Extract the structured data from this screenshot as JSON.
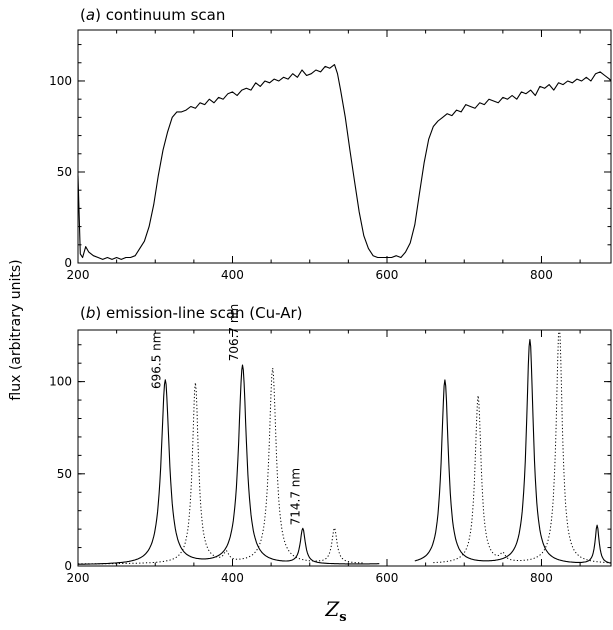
{
  "ylabel": "flux (arbitrary units)",
  "xlabel": "Z",
  "xlabel_sub": "s",
  "chart_data": [
    {
      "type": "line",
      "panel_letter": "a",
      "title": "continuum scan",
      "xlim": [
        200,
        890
      ],
      "ylim": [
        0,
        128
      ],
      "xticks": [
        200,
        400,
        600,
        800
      ],
      "yticks": [
        0,
        50,
        100
      ],
      "series": [
        {
          "style": "solid",
          "x": [
            200,
            203,
            206,
            210,
            214,
            220,
            226,
            232,
            238,
            244,
            250,
            256,
            262,
            268,
            274,
            280,
            286,
            292,
            298,
            304,
            310,
            316,
            322,
            328,
            334,
            340,
            346,
            352,
            358,
            364,
            370,
            376,
            382,
            388,
            394,
            400,
            406,
            412,
            418,
            424,
            430,
            436,
            442,
            448,
            454,
            460,
            466,
            472,
            478,
            484,
            490,
            496,
            502,
            508,
            514,
            520,
            526,
            532,
            536,
            540,
            546,
            552,
            558,
            564,
            570,
            576,
            582,
            588,
            594,
            600,
            606,
            612,
            618,
            624,
            630,
            636,
            642,
            648,
            654,
            660,
            666,
            672,
            678,
            684,
            690,
            696,
            702,
            708,
            714,
            720,
            726,
            732,
            738,
            744,
            750,
            756,
            762,
            768,
            774,
            780,
            786,
            792,
            798,
            804,
            810,
            816,
            822,
            828,
            834,
            840,
            846,
            852,
            858,
            864,
            870,
            876,
            882,
            888,
            890
          ],
          "y": [
            48,
            5,
            3,
            9,
            6,
            4,
            3,
            2,
            3,
            2,
            3,
            2,
            3,
            3,
            4,
            8,
            12,
            20,
            32,
            48,
            62,
            72,
            80,
            83,
            83,
            84,
            86,
            85,
            88,
            87,
            90,
            88,
            91,
            90,
            93,
            94,
            92,
            95,
            96,
            95,
            99,
            97,
            100,
            99,
            101,
            100,
            102,
            101,
            104,
            102,
            106,
            103,
            104,
            106,
            105,
            108,
            107,
            109,
            104,
            95,
            80,
            62,
            45,
            28,
            15,
            8,
            4,
            3,
            3,
            3,
            3,
            4,
            3,
            6,
            11,
            21,
            38,
            55,
            68,
            75,
            78,
            80,
            82,
            81,
            84,
            83,
            87,
            86,
            85,
            88,
            87,
            90,
            89,
            88,
            91,
            90,
            92,
            90,
            94,
            93,
            95,
            92,
            97,
            96,
            98,
            95,
            99,
            98,
            100,
            99,
            101,
            100,
            102,
            100,
            104,
            105,
            103,
            101,
            100
          ]
        }
      ]
    },
    {
      "type": "line",
      "panel_letter": "b",
      "title": "emission-line scan (Cu-Ar)",
      "xlim": [
        200,
        890
      ],
      "ylim": [
        0,
        128
      ],
      "xticks": [
        200,
        400,
        600,
        800
      ],
      "yticks": [
        0,
        50,
        100
      ],
      "annotations": [
        {
          "text": "696.5 nm",
          "x": 307,
          "y": 96
        },
        {
          "text": "706.7 nm",
          "x": 407,
          "y": 111
        },
        {
          "text": "714.7 nm",
          "x": 487,
          "y": 22
        }
      ],
      "series": [
        {
          "style": "solid",
          "peaks": [
            {
              "x": 313,
              "height": 100,
              "width": 8
            },
            {
              "x": 413,
              "height": 108,
              "width": 8
            },
            {
              "x": 491,
              "height": 19,
              "width": 5
            },
            {
              "x": 675,
              "height": 100,
              "width": 7
            },
            {
              "x": 785,
              "height": 122,
              "width": 7
            },
            {
              "x": 872,
              "height": 21,
              "width": 4
            }
          ],
          "baseline": 0.5,
          "gaps": [
            [
              590,
              636
            ]
          ]
        },
        {
          "style": "dotted",
          "peaks": [
            {
              "x": 352,
              "height": 98,
              "width": 6
            },
            {
              "x": 452,
              "height": 106,
              "width": 7
            },
            {
              "x": 532,
              "height": 19,
              "width": 5
            },
            {
              "x": 718,
              "height": 91,
              "width": 6
            },
            {
              "x": 823,
              "height": 130,
              "width": 6
            },
            {
              "x": 392,
              "height": 5,
              "width": 5
            },
            {
              "x": 750,
              "height": 4,
              "width": 5
            }
          ],
          "baseline": 1,
          "gaps": [
            [
              570,
              660
            ]
          ]
        }
      ]
    }
  ]
}
